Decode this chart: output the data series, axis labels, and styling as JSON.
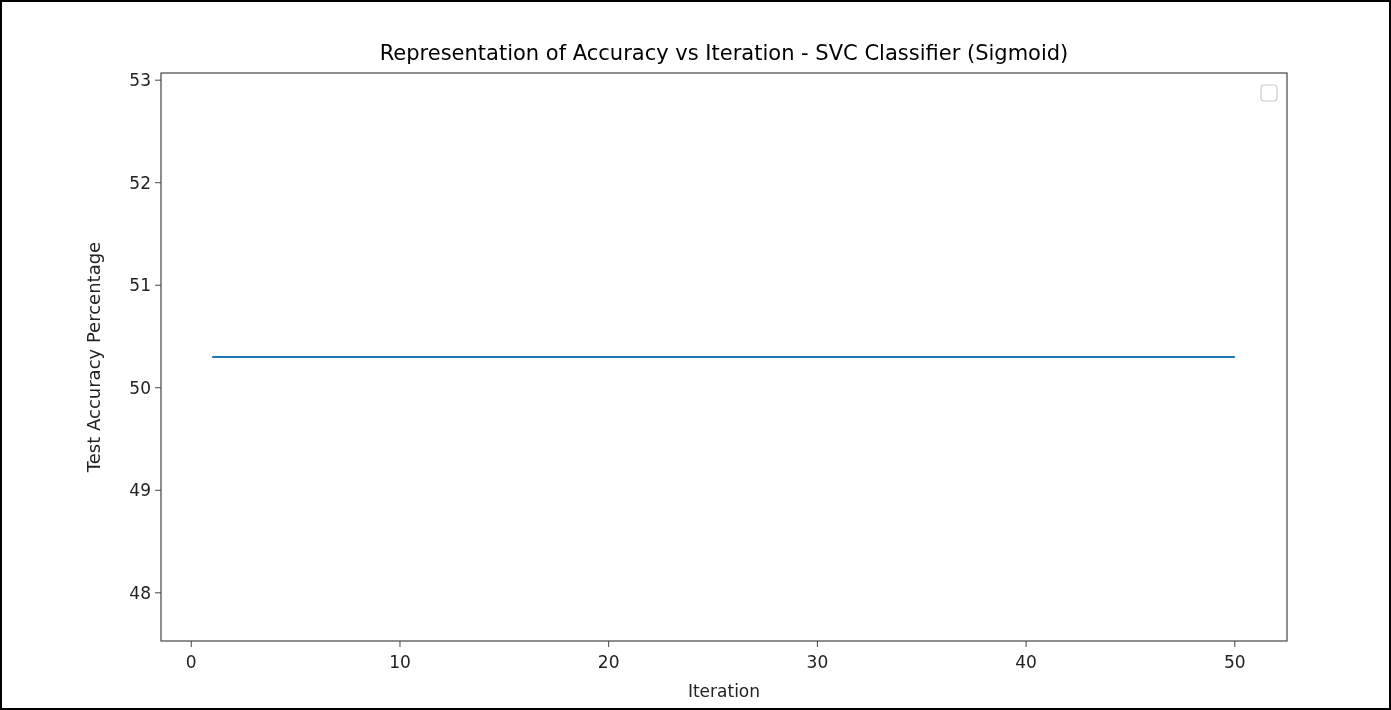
{
  "chart_data": {
    "type": "line",
    "title": "Representation of Accuracy vs Iteration - SVC Classifier (Sigmoid)",
    "xlabel": "Iteration",
    "ylabel": "Test Accuracy Percentage",
    "x": [
      1,
      50
    ],
    "series": [
      {
        "color": "#1f77b4",
        "values": [
          50.3,
          50.3
        ]
      }
    ],
    "xlim": [
      -1.45,
      52.5
    ],
    "xticks": [
      0,
      10,
      20,
      30,
      40,
      50
    ],
    "ylim": [
      47.53,
      53.07
    ],
    "yticks": [
      48,
      49,
      50,
      51,
      52,
      53
    ],
    "grid": false,
    "line_style": "solid",
    "marker": "none"
  }
}
